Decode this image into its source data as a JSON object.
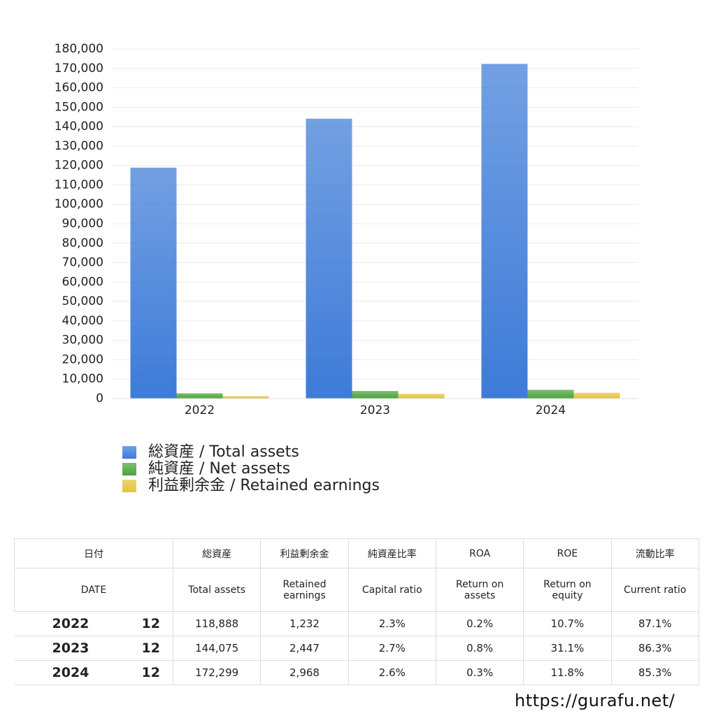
{
  "chart_data": {
    "type": "bar",
    "categories": [
      "2022",
      "2023",
      "2024"
    ],
    "series": [
      {
        "name": "総資産 / Total assets",
        "color": "#3d7bd8",
        "values": [
          118888,
          144075,
          172299
        ]
      },
      {
        "name": "純資産 / Net assets",
        "color": "#4aa43c",
        "values": [
          2700,
          3900,
          4500
        ]
      },
      {
        "name": "利益剰余金 / Retained earnings",
        "color": "#e3c53a",
        "values": [
          1232,
          2447,
          2968
        ]
      }
    ],
    "ylim": [
      0,
      180000
    ],
    "yticks": [
      0,
      {
        "value": 10000,
        "label": "10,000"
      },
      {
        "value": 20000,
        "label": "20,000"
      },
      {
        "value": 30000,
        "label": "30,000"
      },
      {
        "value": 40000,
        "label": "40,000"
      },
      {
        "value": 50000,
        "label": "50,000"
      },
      {
        "value": 60000,
        "label": "60,000"
      },
      {
        "value": 70000,
        "label": "70,000"
      },
      {
        "value": 80000,
        "label": "80,000"
      },
      {
        "value": 90000,
        "label": "90,000"
      },
      {
        "value": 100000,
        "label": "100,000"
      },
      {
        "value": 110000,
        "label": "110,000"
      },
      {
        "value": 120000,
        "label": "120,000"
      },
      {
        "value": 130000,
        "label": "130,000"
      },
      {
        "value": 140000,
        "label": "140,000"
      },
      {
        "value": 150000,
        "label": "150,000"
      },
      {
        "value": 160000,
        "label": "160,000"
      },
      {
        "value": 170000,
        "label": "170,000"
      },
      {
        "value": 180000,
        "label": "180,000"
      }
    ],
    "grid": true
  },
  "table": {
    "header_jp": [
      "日付",
      "総資産",
      "利益剰余金",
      "純資産比率",
      "ROA",
      "ROE",
      "流動比率"
    ],
    "header_en": [
      "DATE",
      "Total assets",
      "Retained earnings",
      "Capital ratio",
      "Return on assets",
      "Return on equity",
      "Current ratio"
    ],
    "rows": [
      [
        "2022",
        "12",
        "118,888",
        "1,232",
        "2.3%",
        "0.2%",
        "10.7%",
        "87.1%"
      ],
      [
        "2023",
        "12",
        "144,075",
        "2,447",
        "2.7%",
        "0.8%",
        "31.1%",
        "86.3%"
      ],
      [
        "2024",
        "12",
        "172,299",
        "2,968",
        "2.6%",
        "0.3%",
        "11.8%",
        "85.3%"
      ]
    ]
  },
  "footer": {
    "url": "https://gurafu.net/"
  }
}
